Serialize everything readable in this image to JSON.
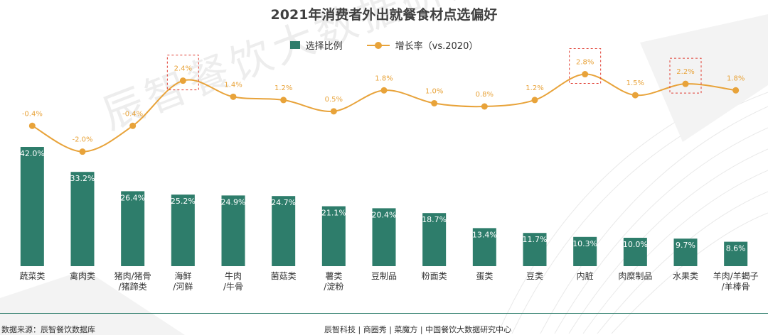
{
  "chart_data": {
    "type": "bar+line",
    "title": "2021年消费者外出就餐食材点选偏好",
    "categories": [
      [
        "蔬菜类"
      ],
      [
        "禽肉类"
      ],
      [
        "猪肉/猪骨",
        "/猪蹄类"
      ],
      [
        "海鲜",
        "/河鲜"
      ],
      [
        "牛肉",
        "/牛骨"
      ],
      [
        "菌菇类"
      ],
      [
        "薯类",
        "/淀粉"
      ],
      [
        "豆制品"
      ],
      [
        "粉面类"
      ],
      [
        "蛋类"
      ],
      [
        "豆类"
      ],
      [
        "内脏"
      ],
      [
        "肉糜制品"
      ],
      [
        "水果类"
      ],
      [
        "羊肉/羊蝎子",
        "/羊棒骨"
      ]
    ],
    "series": [
      {
        "name": "选择比例",
        "type": "bar",
        "color": "#2e7d6b",
        "values": [
          42.0,
          33.2,
          26.4,
          25.2,
          24.9,
          24.7,
          21.1,
          20.4,
          18.7,
          13.4,
          11.7,
          10.3,
          10.0,
          9.7,
          8.6
        ],
        "labels": [
          "42.0%",
          "33.2%",
          "26.4%",
          "25.2%",
          "24.9%",
          "24.7%",
          "21.1%",
          "20.4%",
          "18.7%",
          "13.4%",
          "11.7%",
          "10.3%",
          "10.0%",
          "9.7%",
          "8.6%"
        ]
      },
      {
        "name": "增长率（vs.2020）",
        "type": "line",
        "color": "#e8a33a",
        "values": [
          -0.4,
          -2.0,
          -0.4,
          2.4,
          1.4,
          1.2,
          0.5,
          1.8,
          1.0,
          0.8,
          1.2,
          2.8,
          1.5,
          2.2,
          1.8
        ],
        "labels": [
          "-0.4%",
          "-2.0%",
          "-0.4%",
          "2.4%",
          "1.4%",
          "1.2%",
          "0.5%",
          "1.8%",
          "1.0%",
          "0.8%",
          "1.2%",
          "2.8%",
          "1.5%",
          "2.2%",
          "1.8%"
        ]
      }
    ],
    "highlighted": [
      "海鲜/河鲜",
      "内脏",
      "水果类"
    ],
    "bar_ylim": [
      0,
      45
    ],
    "line_ylim": [
      -2.5,
      3.0
    ]
  },
  "watermark": "辰智餐饮大数据研究中心",
  "footer": {
    "source": "数据来源：辰智餐饮数据库",
    "brand": "辰智科技 | 商圈秀 | 菜魔方 | 中国餐饮大数据研究中心"
  },
  "colors": {
    "bar": "#2e7d6b",
    "line": "#e8a33a",
    "highlight": "#e03c31"
  }
}
